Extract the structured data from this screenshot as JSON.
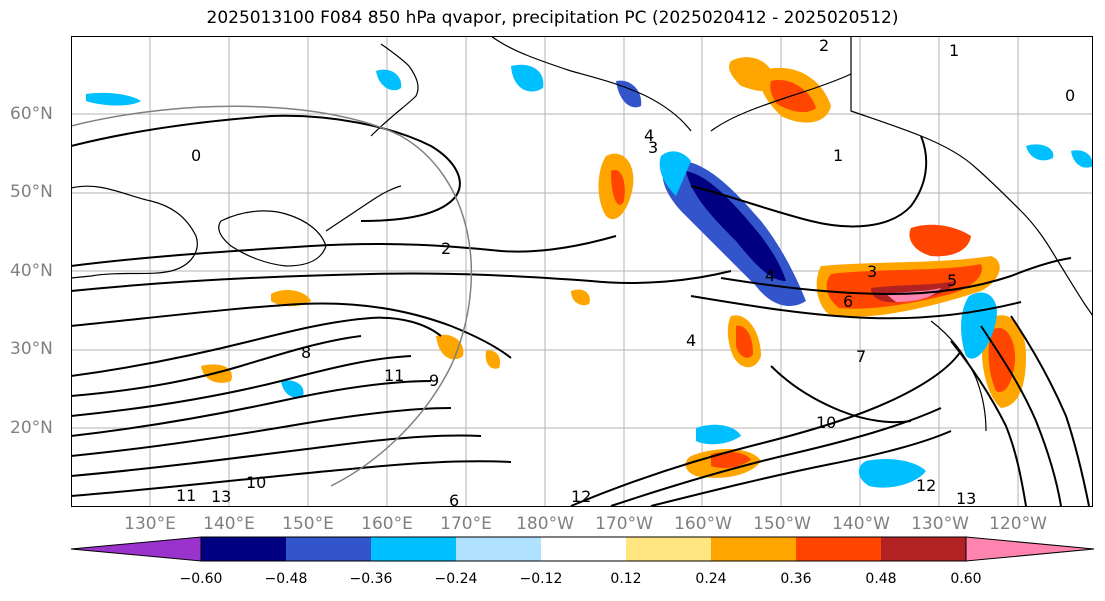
{
  "title": "2025013100 F084 850 hPa qvapor, precipitation PC (2025020412 - 2025020512)",
  "map": {
    "lat_labels": [
      "60°N",
      "50°N",
      "40°N",
      "30°N",
      "20°N"
    ],
    "lon_labels": [
      "130°E",
      "140°E",
      "150°E",
      "160°E",
      "170°E",
      "180°W",
      "170°W",
      "160°W",
      "150°W",
      "140°W",
      "130°W",
      "120°W"
    ],
    "contour_labels": [
      "2",
      "0",
      "1",
      "4",
      "3",
      "2",
      "4",
      "3",
      "6",
      "5",
      "4",
      "1",
      "7",
      "10",
      "11",
      "9",
      "8",
      "6",
      "12",
      "13",
      "10",
      "11",
      "13",
      "12",
      "0"
    ]
  },
  "colorbar": {
    "colors": [
      "#9933cc",
      "#000080",
      "#3355cc",
      "#00bfff",
      "#b0e2ff",
      "#ffffff",
      "#ffe680",
      "#ffa500",
      "#ff4500",
      "#b22222",
      "#ff85b0"
    ],
    "tick_labels": [
      "−0.60",
      "−0.48",
      "−0.36",
      "−0.24",
      "−0.12",
      "0.12",
      "0.24",
      "0.36",
      "0.48",
      "0.60"
    ]
  }
}
